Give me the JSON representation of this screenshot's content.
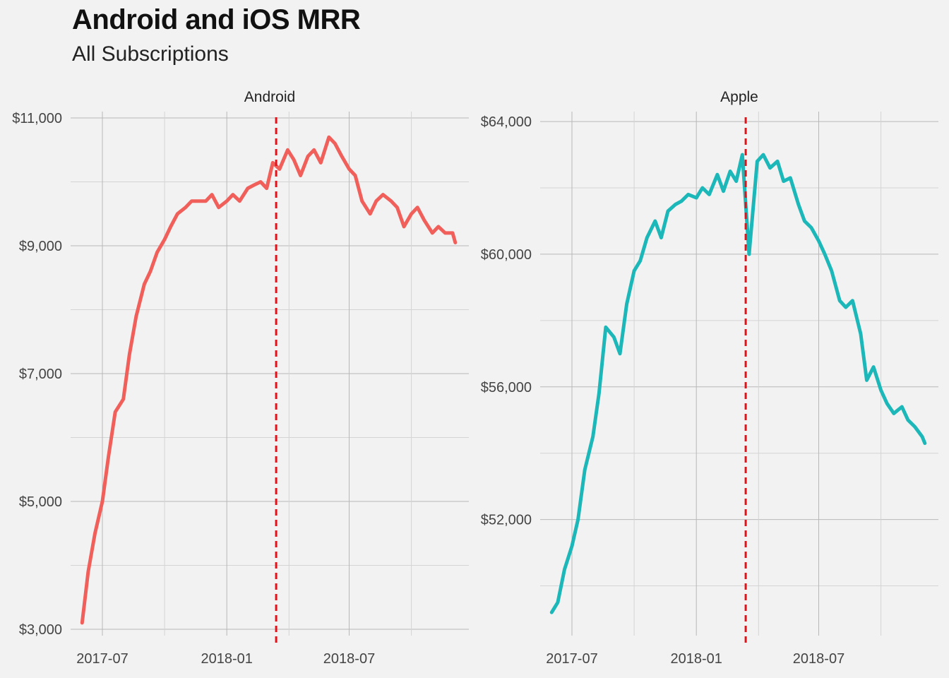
{
  "header": {
    "title": "Android and iOS MRR",
    "subtitle": "All Subscriptions"
  },
  "chart_data": [
    {
      "type": "line",
      "facet": "Android",
      "color": "#f15f5b",
      "vline_color": "#e0121a",
      "vline_x": "2018-03-15",
      "x_ticks": [
        "2017-07",
        "2018-01",
        "2018-07"
      ],
      "y_ticks": [
        "$3,000",
        "$5,000",
        "$7,000",
        "$9,000",
        "$11,000"
      ],
      "ylim": [
        2900,
        11100
      ],
      "xlim": [
        "2017-05-15",
        "2018-12-25"
      ],
      "grid": true,
      "x": [
        "2017-06-01",
        "2017-06-10",
        "2017-06-20",
        "2017-07-01",
        "2017-07-10",
        "2017-07-20",
        "2017-08-01",
        "2017-08-10",
        "2017-08-20",
        "2017-09-01",
        "2017-09-10",
        "2017-09-20",
        "2017-10-01",
        "2017-10-10",
        "2017-10-20",
        "2017-11-01",
        "2017-11-10",
        "2017-11-20",
        "2017-12-01",
        "2017-12-10",
        "2017-12-20",
        "2018-01-01",
        "2018-01-10",
        "2018-01-20",
        "2018-02-01",
        "2018-02-10",
        "2018-02-20",
        "2018-03-01",
        "2018-03-10",
        "2018-03-20",
        "2018-04-01",
        "2018-04-10",
        "2018-04-20",
        "2018-05-01",
        "2018-05-10",
        "2018-05-20",
        "2018-06-01",
        "2018-06-10",
        "2018-06-20",
        "2018-07-01",
        "2018-07-10",
        "2018-07-20",
        "2018-08-01",
        "2018-08-10",
        "2018-08-20",
        "2018-09-01",
        "2018-09-10",
        "2018-09-20",
        "2018-10-01",
        "2018-10-10",
        "2018-10-20",
        "2018-11-01",
        "2018-11-10",
        "2018-11-20",
        "2018-12-01",
        "2018-12-05"
      ],
      "y": [
        3100,
        3900,
        4500,
        5000,
        5700,
        6400,
        6600,
        7300,
        7900,
        8400,
        8600,
        8900,
        9100,
        9300,
        9500,
        9600,
        9700,
        9700,
        9700,
        9800,
        9600,
        9700,
        9800,
        9700,
        9900,
        9950,
        10000,
        9900,
        10300,
        10200,
        10500,
        10350,
        10100,
        10400,
        10500,
        10300,
        10700,
        10600,
        10400,
        10200,
        10100,
        9700,
        9500,
        9700,
        9800,
        9700,
        9600,
        9300,
        9500,
        9600,
        9400,
        9200,
        9300,
        9200,
        9200,
        9050
      ]
    },
    {
      "type": "line",
      "facet": "Apple",
      "color": "#1cb7b8",
      "vline_color": "#e0121a",
      "vline_x": "2018-03-15",
      "x_ticks": [
        "2017-07",
        "2018-01",
        "2018-07"
      ],
      "y_ticks": [
        "$52,000",
        "$56,000",
        "$60,000",
        "$64,000"
      ],
      "ylim": [
        48500,
        64300
      ],
      "xlim": [
        "2017-05-15",
        "2018-12-25"
      ],
      "grid": true,
      "x": [
        "2017-06-01",
        "2017-06-10",
        "2017-06-20",
        "2017-07-01",
        "2017-07-10",
        "2017-07-20",
        "2017-08-01",
        "2017-08-10",
        "2017-08-20",
        "2017-09-01",
        "2017-09-10",
        "2017-09-20",
        "2017-10-01",
        "2017-10-10",
        "2017-10-20",
        "2017-11-01",
        "2017-11-10",
        "2017-11-20",
        "2017-12-01",
        "2017-12-10",
        "2017-12-20",
        "2018-01-01",
        "2018-01-10",
        "2018-01-20",
        "2018-02-01",
        "2018-02-10",
        "2018-02-20",
        "2018-03-01",
        "2018-03-10",
        "2018-03-20",
        "2018-04-01",
        "2018-04-10",
        "2018-04-20",
        "2018-05-01",
        "2018-05-10",
        "2018-05-20",
        "2018-06-01",
        "2018-06-10",
        "2018-06-20",
        "2018-07-01",
        "2018-07-10",
        "2018-07-20",
        "2018-08-01",
        "2018-08-10",
        "2018-08-20",
        "2018-09-01",
        "2018-09-10",
        "2018-09-20",
        "2018-10-01",
        "2018-10-10",
        "2018-10-20",
        "2018-11-01",
        "2018-11-10",
        "2018-11-20",
        "2018-12-01",
        "2018-12-05"
      ],
      "y": [
        49200,
        49500,
        50500,
        51200,
        52000,
        53500,
        54500,
        55800,
        57800,
        57500,
        57000,
        58500,
        59500,
        59800,
        60500,
        61000,
        60500,
        61300,
        61500,
        61600,
        61800,
        61700,
        62000,
        61800,
        62400,
        61900,
        62500,
        62200,
        63000,
        60000,
        62800,
        63000,
        62600,
        62800,
        62200,
        62300,
        61500,
        61000,
        60800,
        60400,
        60000,
        59500,
        58600,
        58400,
        58600,
        57600,
        56200,
        56600,
        55900,
        55500,
        55200,
        55400,
        55000,
        54800,
        54500,
        54300
      ]
    }
  ]
}
